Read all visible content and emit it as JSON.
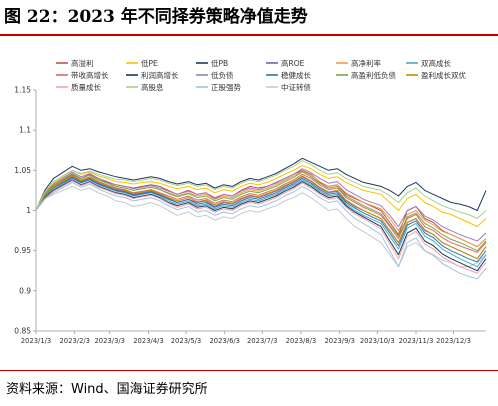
{
  "header": {
    "title": "图 22：2023 年不同择券策略净值走势"
  },
  "footer": {
    "source": "资料来源：Wind、国海证券研究所"
  },
  "chart_data": {
    "type": "line",
    "title": "",
    "xlabel": "",
    "ylabel": "",
    "ylim": [
      0.85,
      1.15
    ],
    "yticks": [
      "0.85",
      "0.9",
      "0.95",
      "1",
      "1.05",
      "1.1",
      "1.15"
    ],
    "xlim": [
      "2023-01-03",
      "2023-12-29"
    ],
    "xticks": [
      "2023/1/3",
      "2023/2/3",
      "2023/3/3",
      "2023/4/3",
      "2023/5/3",
      "2023/6/3",
      "2023/7/3",
      "2023/8/3",
      "2023/9/3",
      "2023/10/3",
      "2023/11/3",
      "2023/12/3"
    ],
    "grid": false,
    "legend_position": "top",
    "x": [
      "2023-01-03",
      "2023-01-10",
      "2023-01-17",
      "2023-02-01",
      "2023-02-08",
      "2023-02-15",
      "2023-02-22",
      "2023-03-01",
      "2023-03-08",
      "2023-03-15",
      "2023-03-22",
      "2023-03-29",
      "2023-04-05",
      "2023-04-12",
      "2023-04-19",
      "2023-04-26",
      "2023-05-05",
      "2023-05-12",
      "2023-05-19",
      "2023-05-26",
      "2023-06-02",
      "2023-06-09",
      "2023-06-16",
      "2023-06-23",
      "2023-06-30",
      "2023-07-07",
      "2023-07-14",
      "2023-07-21",
      "2023-07-28",
      "2023-08-04",
      "2023-08-11",
      "2023-08-18",
      "2023-08-25",
      "2023-09-01",
      "2023-09-08",
      "2023-09-15",
      "2023-09-22",
      "2023-10-06",
      "2023-10-13",
      "2023-10-20",
      "2023-10-27",
      "2023-11-03",
      "2023-11-10",
      "2023-11-17",
      "2023-11-24",
      "2023-12-01",
      "2023-12-08",
      "2023-12-15",
      "2023-12-22",
      "2023-12-29"
    ],
    "series": [
      {
        "name": "高溢利",
        "color": "#c0504d",
        "values": [
          1.0,
          1.02,
          1.03,
          1.045,
          1.04,
          1.045,
          1.04,
          1.035,
          1.032,
          1.03,
          1.028,
          1.03,
          1.032,
          1.03,
          1.025,
          1.02,
          1.025,
          1.02,
          1.022,
          1.015,
          1.02,
          1.018,
          1.025,
          1.03,
          1.028,
          1.03,
          1.035,
          1.04,
          1.045,
          1.05,
          1.045,
          1.035,
          1.03,
          1.032,
          1.02,
          1.015,
          1.01,
          1.0,
          0.985,
          0.97,
          1.0,
          1.005,
          0.99,
          0.985,
          0.975,
          0.97,
          0.965,
          0.96,
          0.955,
          0.965
        ]
      },
      {
        "name": "低PE",
        "color": "#ffc000",
        "values": [
          1.0,
          1.022,
          1.035,
          1.05,
          1.045,
          1.048,
          1.043,
          1.04,
          1.036,
          1.035,
          1.033,
          1.035,
          1.036,
          1.034,
          1.03,
          1.027,
          1.03,
          1.026,
          1.028,
          1.022,
          1.026,
          1.024,
          1.03,
          1.034,
          1.032,
          1.035,
          1.04,
          1.045,
          1.05,
          1.056,
          1.052,
          1.045,
          1.04,
          1.042,
          1.035,
          1.03,
          1.025,
          1.02,
          1.01,
          1.0,
          1.015,
          1.02,
          1.01,
          1.005,
          0.998,
          0.995,
          0.99,
          0.985,
          0.98,
          0.99
        ]
      },
      {
        "name": "低PB",
        "color": "#1f3864",
        "values": [
          1.0,
          1.025,
          1.04,
          1.055,
          1.05,
          1.052,
          1.048,
          1.045,
          1.042,
          1.04,
          1.038,
          1.04,
          1.042,
          1.04,
          1.036,
          1.033,
          1.036,
          1.032,
          1.034,
          1.028,
          1.032,
          1.03,
          1.036,
          1.04,
          1.038,
          1.042,
          1.046,
          1.052,
          1.058,
          1.065,
          1.06,
          1.055,
          1.05,
          1.052,
          1.045,
          1.04,
          1.035,
          1.03,
          1.025,
          1.018,
          1.03,
          1.035,
          1.025,
          1.02,
          1.015,
          1.01,
          1.008,
          1.005,
          1.0,
          1.025
        ]
      },
      {
        "name": "高ROE",
        "color": "#8064a2",
        "values": [
          1.0,
          1.018,
          1.028,
          1.042,
          1.036,
          1.04,
          1.034,
          1.03,
          1.026,
          1.024,
          1.02,
          1.022,
          1.024,
          1.02,
          1.015,
          1.01,
          1.014,
          1.01,
          1.012,
          1.005,
          1.01,
          1.008,
          1.014,
          1.018,
          1.016,
          1.02,
          1.024,
          1.03,
          1.035,
          1.042,
          1.036,
          1.028,
          1.022,
          1.024,
          1.012,
          1.005,
          1.0,
          0.99,
          0.975,
          0.96,
          0.985,
          0.99,
          0.975,
          0.97,
          0.96,
          0.955,
          0.95,
          0.945,
          0.94,
          0.955
        ]
      },
      {
        "name": "高净利率",
        "color": "#f79646",
        "values": [
          1.0,
          1.02,
          1.032,
          1.046,
          1.04,
          1.044,
          1.038,
          1.034,
          1.03,
          1.028,
          1.025,
          1.027,
          1.029,
          1.026,
          1.022,
          1.018,
          1.022,
          1.018,
          1.02,
          1.014,
          1.018,
          1.016,
          1.022,
          1.026,
          1.024,
          1.028,
          1.032,
          1.038,
          1.043,
          1.049,
          1.044,
          1.036,
          1.03,
          1.032,
          1.022,
          1.016,
          1.01,
          1.002,
          0.99,
          0.975,
          0.995,
          1.0,
          0.988,
          0.982,
          0.974,
          0.97,
          0.965,
          0.96,
          0.955,
          0.965
        ]
      },
      {
        "name": "双高成长",
        "color": "#4bacc6",
        "values": [
          1.0,
          1.017,
          1.026,
          1.04,
          1.034,
          1.038,
          1.032,
          1.028,
          1.024,
          1.022,
          1.018,
          1.02,
          1.022,
          1.018,
          1.012,
          1.008,
          1.012,
          1.006,
          1.008,
          1.002,
          1.006,
          1.004,
          1.01,
          1.014,
          1.012,
          1.016,
          1.02,
          1.026,
          1.031,
          1.038,
          1.032,
          1.024,
          1.018,
          1.02,
          1.008,
          1.0,
          0.994,
          0.984,
          0.968,
          0.952,
          0.978,
          0.984,
          0.968,
          0.962,
          0.952,
          0.946,
          0.94,
          0.935,
          0.93,
          0.945
        ]
      },
      {
        "name": "带收高增长",
        "color": "#e06666",
        "values": [
          1.0,
          1.019,
          1.03,
          1.044,
          1.038,
          1.042,
          1.036,
          1.032,
          1.028,
          1.026,
          1.022,
          1.024,
          1.026,
          1.022,
          1.018,
          1.014,
          1.018,
          1.013,
          1.015,
          1.009,
          1.013,
          1.011,
          1.017,
          1.021,
          1.019,
          1.023,
          1.027,
          1.033,
          1.038,
          1.045,
          1.04,
          1.032,
          1.026,
          1.028,
          1.016,
          1.01,
          1.004,
          0.994,
          0.98,
          0.965,
          0.99,
          0.995,
          0.98,
          0.975,
          0.966,
          0.96,
          0.956,
          0.952,
          0.948,
          0.96
        ]
      },
      {
        "name": "利润高增长",
        "color": "#17375e",
        "values": [
          1.0,
          1.016,
          1.025,
          1.038,
          1.032,
          1.036,
          1.03,
          1.026,
          1.022,
          1.02,
          1.016,
          1.018,
          1.02,
          1.016,
          1.01,
          1.006,
          1.01,
          1.004,
          1.006,
          1.0,
          1.004,
          1.002,
          1.008,
          1.012,
          1.01,
          1.014,
          1.018,
          1.024,
          1.029,
          1.036,
          1.03,
          1.022,
          1.016,
          1.018,
          1.006,
          0.998,
          0.992,
          0.98,
          0.962,
          0.945,
          0.972,
          0.978,
          0.962,
          0.956,
          0.946,
          0.94,
          0.935,
          0.93,
          0.925,
          0.94
        ]
      },
      {
        "name": "低负债",
        "color": "#9e7cc1",
        "values": [
          1.0,
          1.021,
          1.033,
          1.048,
          1.042,
          1.046,
          1.04,
          1.036,
          1.032,
          1.03,
          1.027,
          1.029,
          1.031,
          1.028,
          1.024,
          1.02,
          1.024,
          1.02,
          1.022,
          1.016,
          1.02,
          1.018,
          1.024,
          1.028,
          1.026,
          1.03,
          1.034,
          1.04,
          1.045,
          1.052,
          1.047,
          1.04,
          1.034,
          1.036,
          1.026,
          1.02,
          1.014,
          1.006,
          0.994,
          0.98,
          1.0,
          1.005,
          0.993,
          0.988,
          0.98,
          0.975,
          0.97,
          0.966,
          0.962,
          0.972
        ]
      },
      {
        "name": "稳健成长",
        "color": "#2e75b6",
        "values": [
          1.0,
          1.018,
          1.028,
          1.041,
          1.035,
          1.039,
          1.033,
          1.029,
          1.025,
          1.023,
          1.019,
          1.021,
          1.023,
          1.019,
          1.014,
          1.01,
          1.014,
          1.008,
          1.01,
          1.004,
          1.008,
          1.006,
          1.012,
          1.016,
          1.014,
          1.018,
          1.022,
          1.028,
          1.033,
          1.04,
          1.034,
          1.026,
          1.02,
          1.022,
          1.01,
          1.003,
          0.997,
          0.987,
          0.972,
          0.956,
          0.982,
          0.987,
          0.972,
          0.966,
          0.956,
          0.95,
          0.945,
          0.94,
          0.936,
          0.95
        ]
      },
      {
        "name": "高盈利低负债",
        "color": "#70ad47",
        "values": [
          1.0,
          1.02,
          1.031,
          1.046,
          1.04,
          1.044,
          1.038,
          1.034,
          1.03,
          1.028,
          1.025,
          1.027,
          1.029,
          1.026,
          1.021,
          1.017,
          1.021,
          1.016,
          1.018,
          1.012,
          1.016,
          1.014,
          1.02,
          1.024,
          1.022,
          1.026,
          1.03,
          1.036,
          1.041,
          1.048,
          1.042,
          1.034,
          1.028,
          1.03,
          1.018,
          1.012,
          1.006,
          0.996,
          0.982,
          0.968,
          0.992,
          0.997,
          0.984,
          0.978,
          0.97,
          0.964,
          0.96,
          0.955,
          0.95,
          0.962
        ]
      },
      {
        "name": "盈利成长双优",
        "color": "#bf9000",
        "values": [
          1.0,
          1.019,
          1.029,
          1.043,
          1.037,
          1.041,
          1.035,
          1.031,
          1.027,
          1.025,
          1.021,
          1.023,
          1.025,
          1.021,
          1.016,
          1.012,
          1.016,
          1.011,
          1.013,
          1.007,
          1.011,
          1.009,
          1.015,
          1.019,
          1.017,
          1.021,
          1.025,
          1.031,
          1.036,
          1.043,
          1.037,
          1.029,
          1.023,
          1.025,
          1.013,
          1.006,
          1.0,
          0.99,
          0.975,
          0.96,
          0.985,
          0.99,
          0.976,
          0.97,
          0.96,
          0.955,
          0.95,
          0.945,
          0.94,
          0.955
        ]
      },
      {
        "name": "质量成长",
        "color": "#f4a3a3",
        "values": [
          1.0,
          1.015,
          1.024,
          1.037,
          1.031,
          1.035,
          1.029,
          1.025,
          1.021,
          1.019,
          1.015,
          1.017,
          1.019,
          1.015,
          1.009,
          1.004,
          1.008,
          1.002,
          1.004,
          0.998,
          1.002,
          1.0,
          1.006,
          1.01,
          1.008,
          1.012,
          1.016,
          1.022,
          1.027,
          1.034,
          1.028,
          1.02,
          1.014,
          1.016,
          1.004,
          0.996,
          0.99,
          0.977,
          0.958,
          0.94,
          0.968,
          0.974,
          0.958,
          0.952,
          0.942,
          0.936,
          0.93,
          0.926,
          0.922,
          0.935
        ]
      },
      {
        "name": "高股息",
        "color": "#a9d18e",
        "values": [
          1.0,
          1.023,
          1.036,
          1.05,
          1.046,
          1.049,
          1.045,
          1.042,
          1.039,
          1.038,
          1.036,
          1.038,
          1.04,
          1.038,
          1.034,
          1.031,
          1.034,
          1.03,
          1.032,
          1.026,
          1.03,
          1.028,
          1.034,
          1.038,
          1.036,
          1.04,
          1.044,
          1.05,
          1.055,
          1.062,
          1.057,
          1.05,
          1.045,
          1.047,
          1.04,
          1.035,
          1.03,
          1.025,
          1.018,
          1.01,
          1.022,
          1.028,
          1.018,
          1.012,
          1.006,
          1.002,
          0.998,
          0.995,
          0.99,
          1.0
        ]
      },
      {
        "name": "正股强势",
        "color": "#9dc3e6",
        "values": [
          1.0,
          1.014,
          1.022,
          1.035,
          1.029,
          1.033,
          1.027,
          1.022,
          1.018,
          1.016,
          1.012,
          1.014,
          1.016,
          1.012,
          1.006,
          1.001,
          1.005,
          0.998,
          1.0,
          0.994,
          0.998,
          0.996,
          1.002,
          1.006,
          1.004,
          1.008,
          1.012,
          1.018,
          1.023,
          1.03,
          1.024,
          1.016,
          1.01,
          1.012,
          1.0,
          0.99,
          0.984,
          0.97,
          0.95,
          0.93,
          0.96,
          0.966,
          0.95,
          0.944,
          0.934,
          0.928,
          0.922,
          0.918,
          0.915,
          0.928
        ]
      },
      {
        "name": "中证转债",
        "color": "#c9c9c9",
        "values": [
          1.0,
          1.015,
          1.02,
          1.03,
          1.025,
          1.028,
          1.022,
          1.018,
          1.012,
          1.01,
          1.005,
          1.007,
          1.01,
          1.006,
          1.0,
          0.994,
          0.998,
          0.992,
          0.994,
          0.988,
          0.992,
          0.99,
          0.996,
          1.0,
          0.998,
          1.002,
          1.006,
          1.012,
          1.016,
          1.022,
          1.016,
          1.008,
          1.0,
          1.002,
          0.99,
          0.98,
          0.974,
          0.96,
          0.945,
          0.93,
          0.955,
          0.96,
          0.95,
          0.945,
          0.938,
          0.935,
          0.93,
          0.93,
          0.935,
          0.945
        ]
      }
    ]
  }
}
